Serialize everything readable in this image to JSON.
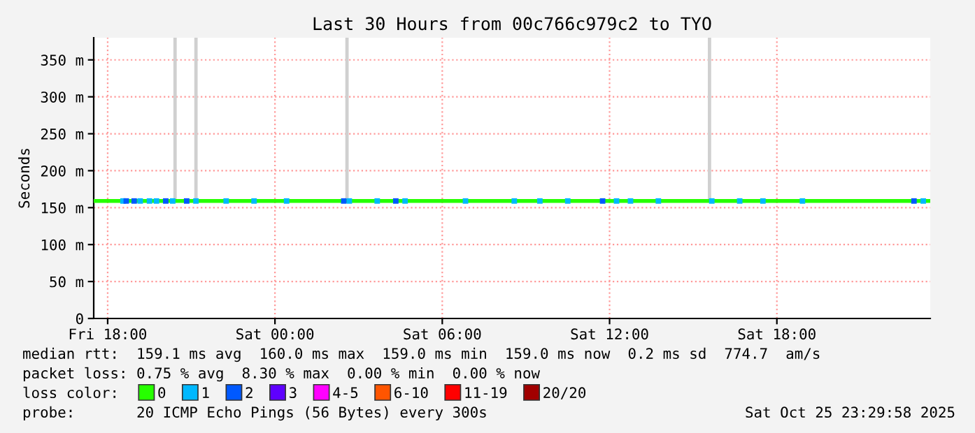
{
  "chart_data": {
    "type": "line",
    "title": "Last 30 Hours from 00c766c979c2 to TYO",
    "ylabel": "Seconds",
    "xlim": [
      "2025-10-24T17:30",
      "2025-10-25T23:30"
    ],
    "xticks": [
      {
        "value": "2025-10-24T18:00",
        "label": "Fri 18:00"
      },
      {
        "value": "2025-10-25T00:00",
        "label": "Sat 00:00"
      },
      {
        "value": "2025-10-25T06:00",
        "label": "Sat 06:00"
      },
      {
        "value": "2025-10-25T12:00",
        "label": "Sat 12:00"
      },
      {
        "value": "2025-10-25T18:00",
        "label": "Sat 18:00"
      }
    ],
    "ylim": [
      0,
      380
    ],
    "yticks": [
      0,
      {
        "value": 50,
        "label": "50 m"
      },
      {
        "value": 100,
        "label": "100 m"
      },
      {
        "value": 150,
        "label": "150 m"
      },
      {
        "value": 200,
        "label": "200 m"
      },
      {
        "value": 250,
        "label": "250 m"
      },
      {
        "value": 300,
        "label": "300 m"
      },
      {
        "value": 350,
        "label": "350 m"
      }
    ],
    "grid": true,
    "legend": "bottom",
    "series": [
      {
        "type": "bar",
        "color": "#d0d0d0",
        "x": [
          "2025-10-24T20:25",
          "2025-10-24T21:10",
          "2025-10-25T02:35",
          "2025-10-25T15:35"
        ],
        "base": [
          160,
          160,
          160,
          160
        ],
        "values": [
          220,
          220,
          220,
          220
        ]
      },
      {
        "name": "0",
        "color": "#26ff00",
        "x": [
          "2025-10-24T17:30",
          "2025-10-25T06:00",
          "2025-10-25T23:30"
        ],
        "values": [
          159,
          159,
          159
        ]
      },
      {
        "type": "scatter",
        "name": "1",
        "color": "#00b8ff",
        "marker": "square",
        "x": [
          "2025-10-24T18:33",
          "2025-10-24T19:10",
          "2025-10-24T19:30",
          "2025-10-24T19:45",
          "2025-10-24T20:20",
          "2025-10-24T21:10",
          "2025-10-24T22:15",
          "2025-10-24T23:15",
          "2025-10-25T00:25",
          "2025-10-25T02:40",
          "2025-10-25T03:40",
          "2025-10-25T04:40",
          "2025-10-25T06:50",
          "2025-10-25T08:35",
          "2025-10-25T09:30",
          "2025-10-25T10:30",
          "2025-10-25T12:15",
          "2025-10-25T12:45",
          "2025-10-25T13:45",
          "2025-10-25T15:40",
          "2025-10-25T16:40",
          "2025-10-25T17:30",
          "2025-10-25T18:55",
          "2025-10-25T23:15"
        ],
        "values": [
          159,
          159,
          159,
          159,
          159,
          159,
          159,
          159,
          159,
          159,
          159,
          159,
          159,
          159,
          159,
          159,
          159,
          159,
          159,
          159,
          159,
          159,
          159,
          159
        ]
      },
      {
        "type": "scatter",
        "name": "2",
        "color": "#0059ff",
        "marker": "square",
        "x": [
          "2025-10-24T18:40",
          "2025-10-24T18:57",
          "2025-10-24T20:05",
          "2025-10-24T20:50",
          "2025-10-25T02:28",
          "2025-10-25T04:20",
          "2025-10-25T11:45",
          "2025-10-25T22:55"
        ],
        "values": [
          159,
          159,
          159,
          159,
          159,
          159,
          159,
          159
        ]
      },
      {
        "type": "scatter",
        "name": "3",
        "color": "#5e00ff",
        "marker": "square"
      },
      {
        "type": "scatter",
        "name": "4-5",
        "color": "#ff00ff",
        "marker": "square"
      },
      {
        "type": "scatter",
        "name": "6-10",
        "color": "#ff5500",
        "marker": "square"
      },
      {
        "type": "scatter",
        "name": "11-19",
        "color": "#ff0000",
        "marker": "square"
      },
      {
        "type": "scatter",
        "name": "20/20",
        "color": "#a10000",
        "marker": "square"
      }
    ],
    "annotations": [
      "median rtt:  159.1 ms avg  160.0 ms max  159.0 ms min  159.0 ms now  0.2 ms sd  774.7  am/s",
      "packet loss: 0.75 % avg  8.30 % max  0.00 % min  0.00 % now",
      "loss color:",
      "probe:       20 ICMP Echo Pings (56 Bytes) every 300s",
      "Sat Oct 25 23:29:58 2025"
    ]
  }
}
